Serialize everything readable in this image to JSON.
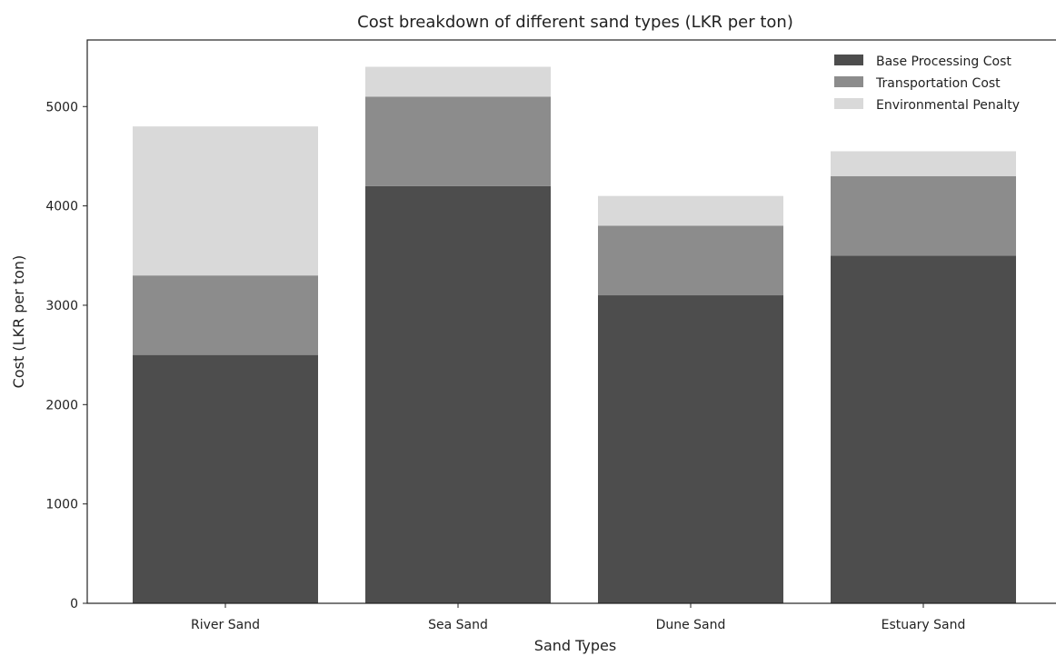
{
  "chart_data": {
    "type": "bar",
    "stacked": true,
    "title": "Cost breakdown of different sand types (LKR per ton)",
    "xlabel": "Sand Types",
    "ylabel": "Cost (LKR per ton)",
    "categories": [
      "River Sand",
      "Sea Sand",
      "Dune Sand",
      "Estuary Sand"
    ],
    "series": [
      {
        "name": "Base Processing Cost",
        "values": [
          2500,
          4200,
          3100,
          3500
        ],
        "color": "#4d4d4d"
      },
      {
        "name": "Transportation Cost",
        "values": [
          800,
          900,
          700,
          800
        ],
        "color": "#8c8c8c"
      },
      {
        "name": "Environmental Penalty",
        "values": [
          1500,
          300,
          300,
          250
        ],
        "color": "#d9d9d9"
      }
    ],
    "ylim": [
      0,
      5670
    ],
    "yticks": [
      0,
      1000,
      2000,
      3000,
      4000,
      5000
    ],
    "grid": false,
    "legend_position": "top-right"
  }
}
